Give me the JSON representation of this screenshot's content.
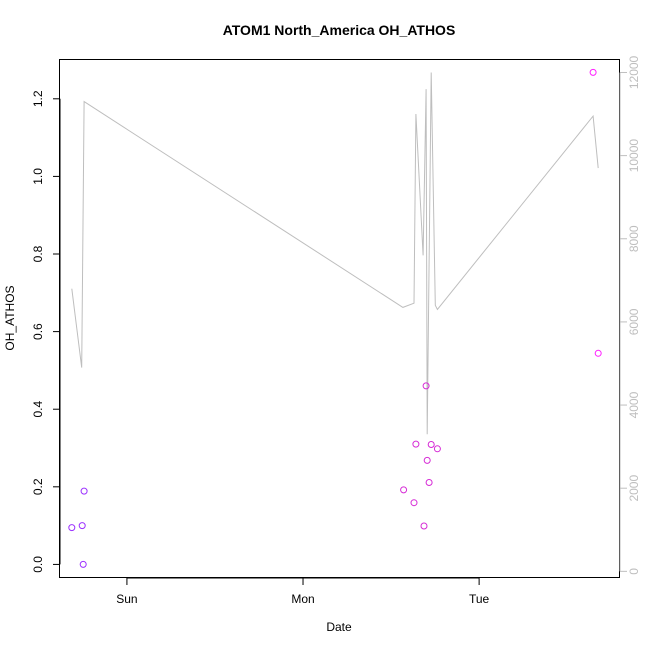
{
  "chart_data": {
    "type": "scatter",
    "title": "ATOM1 North_America OH_ATHOS",
    "xlabel": "Date",
    "ylabel": "OH_ATHOS",
    "xlim": [
      -0.38,
      2.8
    ],
    "ylim": [
      -0.035,
      1.3
    ],
    "y2lim": [
      -160,
      12300
    ],
    "x_ticks": [
      {
        "value": 0,
        "label": "Sun"
      },
      {
        "value": 1,
        "label": "Mon"
      },
      {
        "value": 2,
        "label": "Tue"
      }
    ],
    "y_ticks": [
      {
        "value": 0.0,
        "label": "0.0"
      },
      {
        "value": 0.2,
        "label": "0.2"
      },
      {
        "value": 0.4,
        "label": "0.4"
      },
      {
        "value": 0.6,
        "label": "0.6"
      },
      {
        "value": 0.8,
        "label": "0.8"
      },
      {
        "value": 1.0,
        "label": "1.0"
      },
      {
        "value": 1.2,
        "label": "1.2"
      }
    ],
    "y2_ticks": [
      {
        "value": 0,
        "label": "0"
      },
      {
        "value": 2000,
        "label": "2000"
      },
      {
        "value": 4000,
        "label": "4000"
      },
      {
        "value": 6000,
        "label": "6000"
      },
      {
        "value": 8000,
        "label": "8000"
      },
      {
        "value": 10000,
        "label": "10000"
      },
      {
        "value": 12000,
        "label": "12000"
      }
    ],
    "points": [
      {
        "x": -0.313,
        "y": 0.095,
        "color": "#9b30ff"
      },
      {
        "x": -0.254,
        "y": 0.1,
        "color": "#9b30ff"
      },
      {
        "x": -0.248,
        "y": 0.0,
        "color": "#9b30ff"
      },
      {
        "x": -0.243,
        "y": 0.189,
        "color": "#9b30ff"
      },
      {
        "x": 1.571,
        "y": 0.192,
        "color": "#d62bd6"
      },
      {
        "x": 1.63,
        "y": 0.159,
        "color": "#d62bd6"
      },
      {
        "x": 1.641,
        "y": 0.31,
        "color": "#d62bd6"
      },
      {
        "x": 1.687,
        "y": 0.099,
        "color": "#d62bd6"
      },
      {
        "x": 1.699,
        "y": 0.46,
        "color": "#d62bd6"
      },
      {
        "x": 1.705,
        "y": 0.268,
        "color": "#d62bd6"
      },
      {
        "x": 1.716,
        "y": 0.211,
        "color": "#d62bd6"
      },
      {
        "x": 1.728,
        "y": 0.309,
        "color": "#d62bd6"
      },
      {
        "x": 1.763,
        "y": 0.298,
        "color": "#d62bd6"
      },
      {
        "x": 2.647,
        "y": 1.268,
        "color": "#ff1eff"
      },
      {
        "x": 2.676,
        "y": 0.544,
        "color": "#ff1eff"
      }
    ],
    "secondary_line": {
      "color": "#bebebe",
      "x": [
        -0.313,
        -0.257,
        -0.243,
        1.567,
        1.63,
        1.641,
        1.682,
        1.699,
        1.705,
        1.728,
        1.751,
        1.763,
        2.647,
        2.676
      ],
      "y": [
        6800,
        4900,
        11300,
        6350,
        6450,
        11000,
        7600,
        11600,
        3300,
        12000,
        6400,
        6300,
        10950,
        9700
      ]
    },
    "grid": false,
    "legend": "none"
  }
}
